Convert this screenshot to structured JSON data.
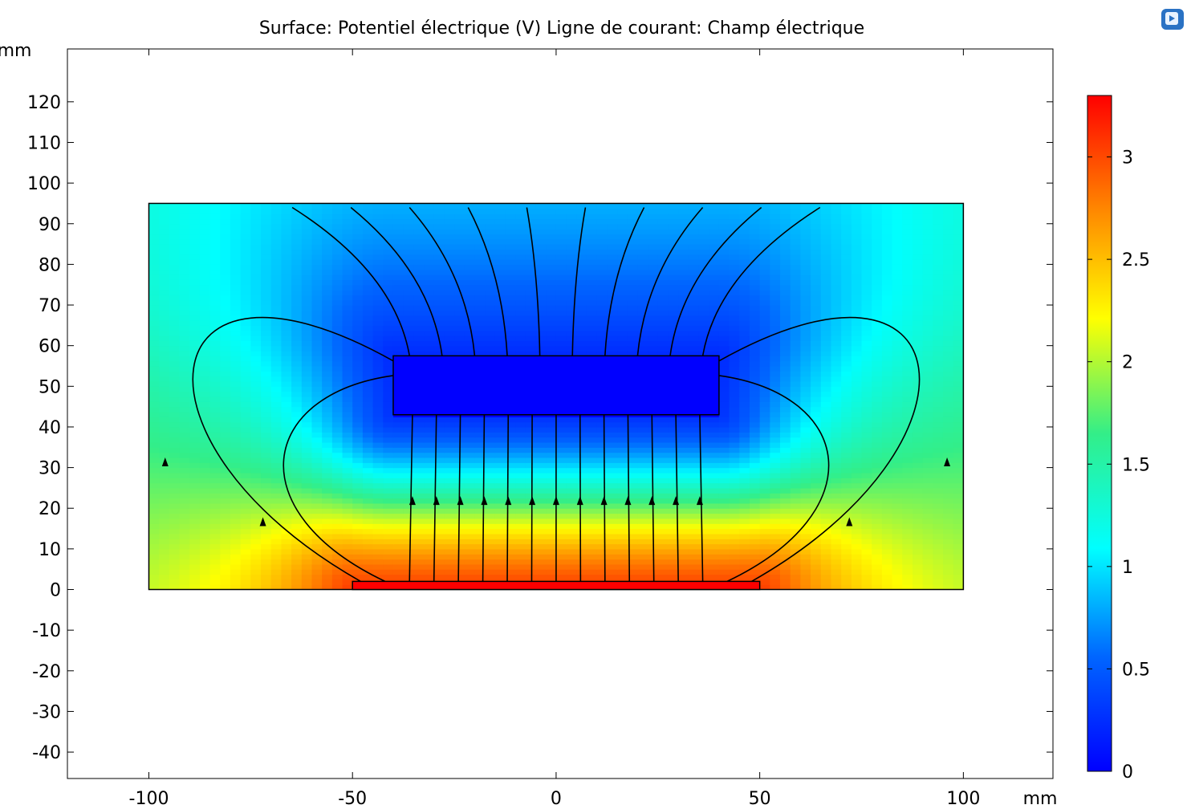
{
  "chart_data": {
    "type": "heatmap",
    "title": "Surface: Potentiel électrique (V)  Ligne de courant: Champ électrique",
    "xunit": "mm",
    "yunit": "mm",
    "xlim": [
      -120,
      122
    ],
    "ylim": [
      -46.5,
      133
    ],
    "x_ticks": [
      -100,
      -50,
      0,
      50,
      100
    ],
    "x_tick_labels": [
      "-100",
      "-50",
      "0",
      "50",
      "100"
    ],
    "y_ticks": [
      120,
      110,
      100,
      90,
      80,
      70,
      60,
      50,
      40,
      30,
      20,
      10,
      0,
      -10,
      -20,
      -30,
      -40
    ],
    "y_tick_labels": [
      "120",
      "110",
      "100",
      "90",
      "80",
      "70",
      "60",
      "50",
      "40",
      "30",
      "20",
      "10",
      "0",
      "-10",
      "-20",
      "-30",
      "-40"
    ],
    "domain_rect": {
      "x": [
        -100,
        100
      ],
      "y": [
        0,
        95
      ]
    },
    "ground_electrode": {
      "x": [
        -40,
        40
      ],
      "y": [
        43,
        57.5
      ],
      "potential": 0
    },
    "driven_electrode": {
      "x": [
        -50,
        50
      ],
      "y": [
        0,
        2
      ],
      "potential": 3.3
    },
    "colorbar": {
      "range": [
        0,
        3.3
      ],
      "ticks": [
        0,
        0.5,
        1,
        1.5,
        2,
        2.5,
        3
      ],
      "tick_labels": [
        "0",
        "0.5",
        "1",
        "1.5",
        "2",
        "2.5",
        "3"
      ],
      "colormap": "rainbow"
    },
    "streamline_field": "electric field",
    "grid": false
  }
}
